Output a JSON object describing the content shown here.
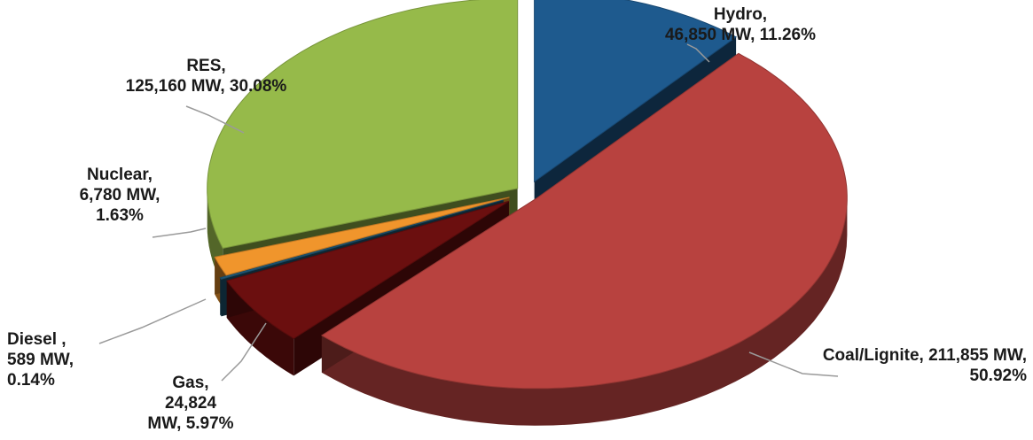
{
  "chart_data": {
    "type": "pie",
    "title": "",
    "slices": [
      {
        "name": "Hydro",
        "value": 46850,
        "unit": "MW",
        "percent": 11.26,
        "color": "#1e5a8e",
        "label_lines": [
          "Hydro,",
          "46,850 MW, 11.26%"
        ]
      },
      {
        "name": "Coal/Lignite",
        "value": 211855,
        "unit": "MW",
        "percent": 50.92,
        "color": "#b8423f",
        "label_lines": [
          "Coal/Lignite, 211,855 MW,",
          "50.92%"
        ]
      },
      {
        "name": "Gas",
        "value": 24824,
        "unit": "MW",
        "percent": 5.97,
        "color": "#6b0f0f",
        "label_lines": [
          "Gas,",
          "24,824",
          "MW, 5.97%"
        ]
      },
      {
        "name": "Diesel",
        "value": 589,
        "unit": "MW",
        "percent": 0.14,
        "color": "#1f5a7a",
        "label_lines": [
          "Diesel ,",
          "589 MW,",
          "0.14%"
        ]
      },
      {
        "name": "Nuclear",
        "value": 6780,
        "unit": "MW",
        "percent": 1.63,
        "color": "#f0952c",
        "label_lines": [
          "Nuclear,",
          "6,780 MW,",
          "1.63%"
        ]
      },
      {
        "name": "RES",
        "value": 125160,
        "unit": "MW",
        "percent": 30.08,
        "color": "#96ba4a",
        "label_lines": [
          "RES,",
          "125,160 MW, 30.08%"
        ]
      }
    ]
  }
}
